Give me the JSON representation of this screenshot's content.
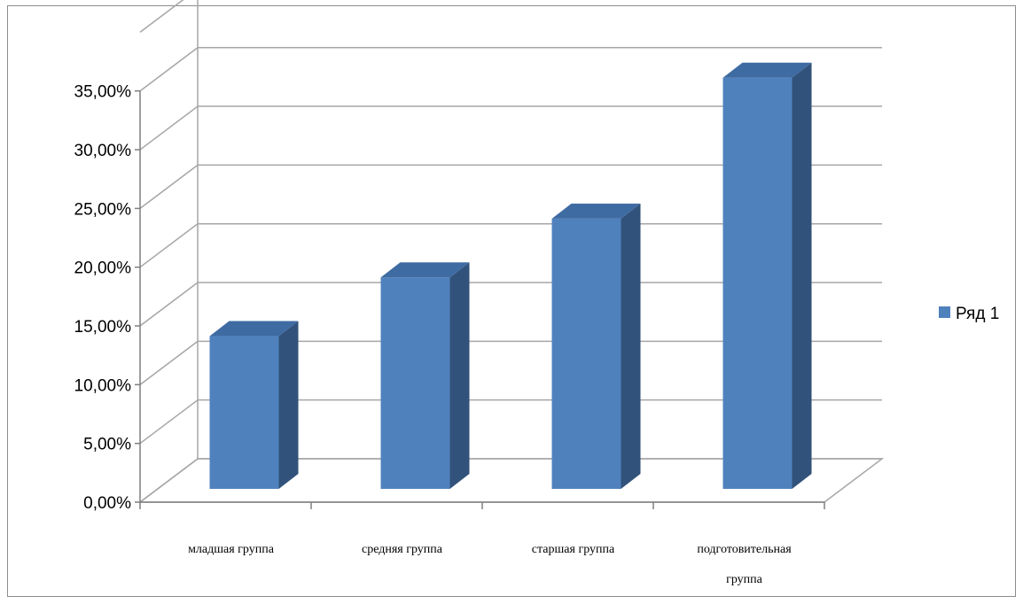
{
  "chart_data": {
    "type": "bar",
    "subtype": "3d-column",
    "categories": [
      [
        "младшая группа"
      ],
      [
        "средняя группа"
      ],
      [
        "старшая группа"
      ],
      [
        "подготовительная",
        "группа"
      ]
    ],
    "series": [
      {
        "name": "Ряд 1",
        "values": [
          0.13,
          0.18,
          0.23,
          0.35
        ]
      }
    ],
    "yticks": [
      "0,00%",
      "5,00%",
      "10,00%",
      "15,00%",
      "20,00%",
      "25,00%",
      "30,00%",
      "35,00%"
    ],
    "ylim": [
      0,
      0.35
    ],
    "grid": true,
    "legend_position": "right",
    "colors": {
      "bar_front": "#4f81bd",
      "bar_side": "#31527a",
      "bar_top": "#3f6ba3",
      "grid": "#a6a6a6"
    }
  }
}
